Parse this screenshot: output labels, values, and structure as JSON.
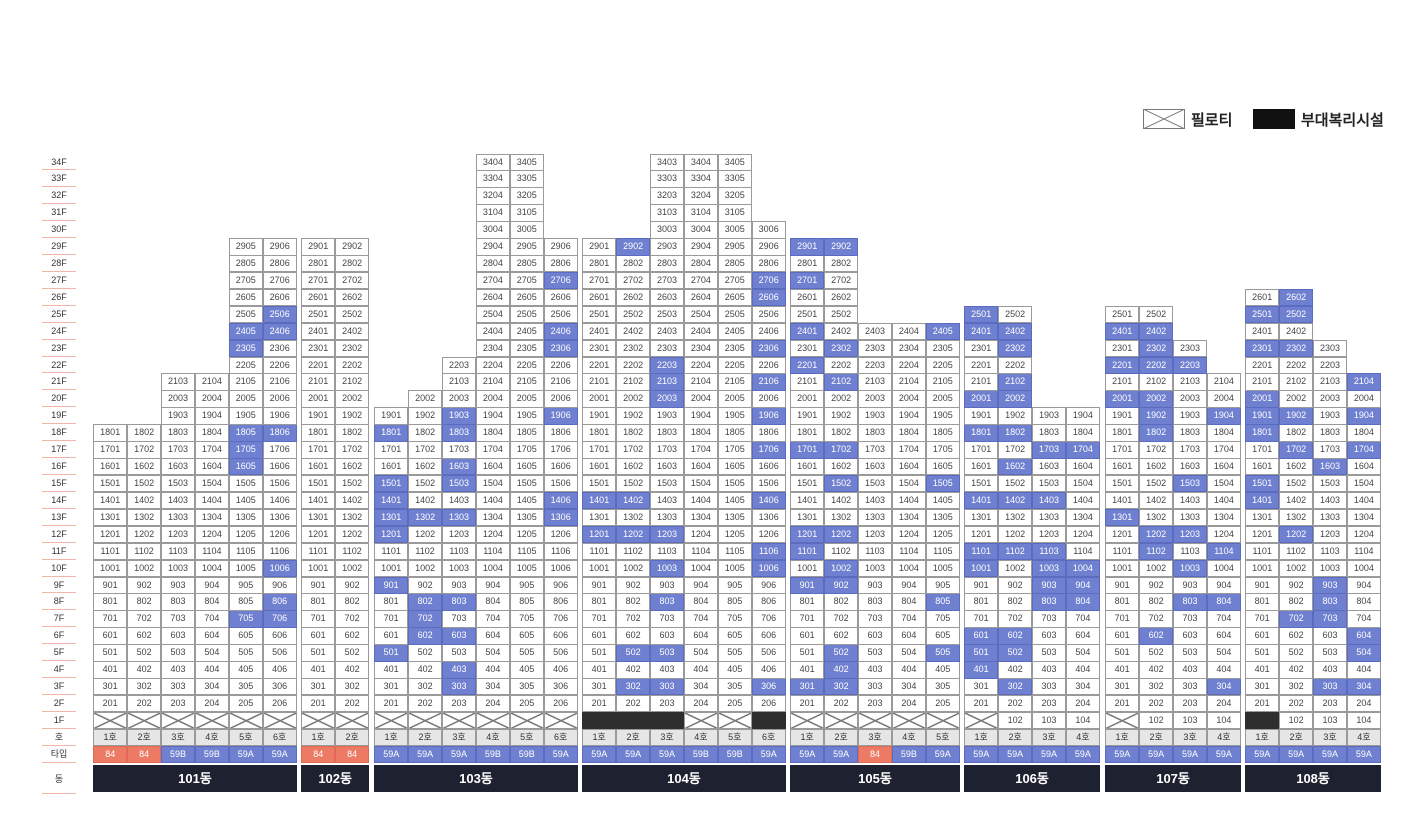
{
  "legend": {
    "piloti_label": "필로티",
    "facility_label": "부대복리시설"
  },
  "row_labels": {
    "unit": "호",
    "type": "타입",
    "building": "동"
  },
  "colors": {
    "highlight": "#6f80d0",
    "type_84": "#ec7a64",
    "facility": "#2e2e2e",
    "header": "#1e2230"
  },
  "buildings": [
    {
      "name": "101동",
      "units": 6,
      "types": [
        "84",
        "84",
        "59B",
        "59B",
        "59A",
        "59A"
      ],
      "ranges": [
        [
          2,
          18
        ],
        [
          2,
          18
        ],
        [
          2,
          21
        ],
        [
          2,
          21
        ],
        [
          2,
          29
        ],
        [
          2,
          29
        ]
      ],
      "first": [
        "piloti",
        "piloti",
        "piloti",
        "piloti",
        "piloti",
        "piloti"
      ],
      "hl": [
        1805,
        1806,
        1605,
        2305,
        2405,
        2406,
        2506,
        1705,
        1006,
        806,
        705,
        706
      ]
    },
    {
      "name": "102동",
      "units": 2,
      "types": [
        "84",
        "84"
      ],
      "ranges": [
        [
          2,
          29
        ],
        [
          2,
          29
        ]
      ],
      "first": [
        "piloti",
        "piloti"
      ],
      "hl": []
    },
    {
      "name": "103동",
      "units": 6,
      "types": [
        "59A",
        "59A",
        "59A",
        "59B",
        "59B",
        "59A"
      ],
      "ranges": [
        [
          2,
          19
        ],
        [
          2,
          20
        ],
        [
          2,
          22
        ],
        [
          2,
          34
        ],
        [
          2,
          34
        ],
        [
          2,
          29
        ]
      ],
      "first": [
        "piloti",
        "piloti",
        "piloti",
        "piloti",
        "piloti",
        "piloti"
      ],
      "hl": [
        1903,
        1906,
        1801,
        1803,
        1603,
        1501,
        1503,
        1401,
        1406,
        1301,
        1302,
        1303,
        1306,
        1201,
        901,
        802,
        803,
        702,
        602,
        603,
        501,
        403,
        303,
        2406,
        2306,
        2706
      ]
    },
    {
      "name": "104동",
      "units": 6,
      "types": [
        "59A",
        "59A",
        "59A",
        "59B",
        "59B",
        "59A"
      ],
      "ranges": [
        [
          2,
          29
        ],
        [
          2,
          29
        ],
        [
          2,
          34
        ],
        [
          2,
          34
        ],
        [
          2,
          34
        ],
        [
          2,
          30
        ]
      ],
      "first": [
        "facility",
        "facility",
        "facility",
        "piloti",
        "piloti",
        "facility"
      ],
      "hl": [
        2902,
        2203,
        2103,
        2003,
        2106,
        2306,
        2606,
        2706,
        1906,
        1706,
        1401,
        1402,
        1406,
        1201,
        1202,
        1203,
        1106,
        1003,
        1006,
        803,
        502,
        503,
        302,
        303,
        306
      ]
    },
    {
      "name": "105동",
      "units": 5,
      "types": [
        "59A",
        "59A",
        "84",
        "59B",
        "59A"
      ],
      "ranges": [
        [
          2,
          29
        ],
        [
          2,
          29
        ],
        [
          2,
          24
        ],
        [
          2,
          24
        ],
        [
          2,
          24
        ]
      ],
      "first": [
        "piloti",
        "piloti",
        "piloti",
        "piloti",
        "piloti"
      ],
      "hl": [
        2901,
        2902,
        2701,
        2401,
        2302,
        2201,
        2102,
        2405,
        1701,
        1702,
        1502,
        1505,
        1101,
        1201,
        1202,
        1002,
        901,
        902,
        805,
        502,
        505,
        402,
        301,
        302
      ]
    },
    {
      "name": "106동",
      "units": 4,
      "types": [
        "59A",
        "59A",
        "59A",
        "59A"
      ],
      "ranges": [
        [
          2,
          25
        ],
        [
          2,
          25
        ],
        [
          2,
          19
        ],
        [
          2,
          19
        ]
      ],
      "first": [
        "piloti",
        "unit",
        "unit",
        "unit"
      ],
      "hl": [
        2501,
        2401,
        2402,
        2302,
        2102,
        2001,
        2002,
        1801,
        1802,
        1703,
        1704,
        1602,
        1401,
        1402,
        1403,
        1101,
        1102,
        1103,
        1001,
        1003,
        1004,
        903,
        904,
        803,
        804,
        601,
        602,
        501,
        502,
        401,
        302
      ]
    },
    {
      "name": "107동",
      "units": 4,
      "types": [
        "59A",
        "59A",
        "59A",
        "59A"
      ],
      "ranges": [
        [
          2,
          25
        ],
        [
          2,
          25
        ],
        [
          2,
          23
        ],
        [
          2,
          21
        ]
      ],
      "first": [
        "piloti",
        "unit",
        "unit",
        "unit"
      ],
      "hl": [
        2401,
        2402,
        2302,
        2201,
        2202,
        2203,
        2001,
        2002,
        1902,
        1904,
        1802,
        1503,
        1301,
        1102,
        1104,
        1202,
        1203,
        1003,
        803,
        804,
        602,
        304
      ]
    },
    {
      "name": "108동",
      "units": 4,
      "types": [
        "59A",
        "59A",
        "59A",
        "59A"
      ],
      "ranges": [
        [
          2,
          26
        ],
        [
          2,
          26
        ],
        [
          2,
          23
        ],
        [
          2,
          21
        ]
      ],
      "first": [
        "facility",
        "unit",
        "unit",
        "unit"
      ],
      "hl": [
        2602,
        2501,
        2502,
        2301,
        2302,
        2104,
        2001,
        1901,
        1902,
        1904,
        1801,
        1702,
        1704,
        1603,
        1501,
        1401,
        1202,
        903,
        803,
        702,
        703,
        604,
        504,
        303,
        304
      ]
    }
  ]
}
